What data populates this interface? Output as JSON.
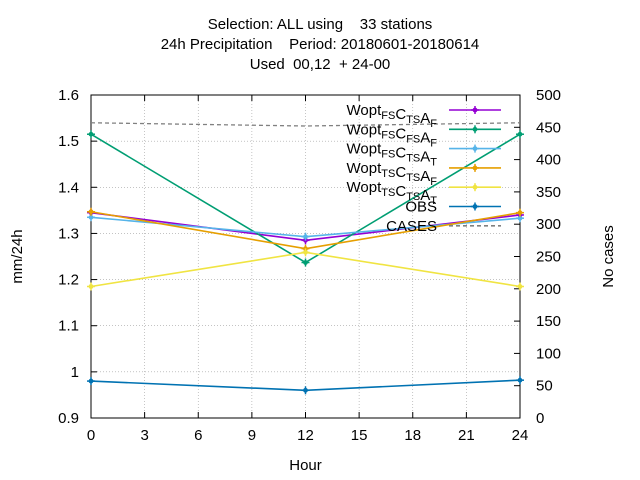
{
  "title_lines": [
    "Selection: ALL using    33 stations",
    "24h Precipitation    Period: 20180601-20180614",
    "Used  00,12  + 24-00"
  ],
  "chart_data": {
    "type": "line",
    "xlabel": "Hour",
    "ylabel": "mm/24h",
    "y2label": "No cases",
    "x": [
      0,
      12,
      24
    ],
    "xticks": [
      0,
      3,
      6,
      9,
      12,
      15,
      18,
      21,
      24
    ],
    "xlim": [
      0,
      24
    ],
    "yticks": [
      0.9,
      1,
      1.1,
      1.2,
      1.3,
      1.4,
      1.5,
      1.6
    ],
    "ylim": [
      0.9,
      1.6
    ],
    "y2ticks": [
      0,
      50,
      100,
      150,
      200,
      250,
      300,
      350,
      400,
      450,
      500
    ],
    "y2lim": [
      0,
      500
    ],
    "grid": true,
    "legend_position": "top-right",
    "series": [
      {
        "name": "Wopt FS C TS A F",
        "label_parts": [
          [
            "Wopt",
            ""
          ],
          [
            "FS",
            "sub"
          ],
          [
            "C",
            ""
          ],
          [
            "TS",
            "sub"
          ],
          [
            "A",
            ""
          ],
          [
            "F",
            "sub"
          ]
        ],
        "values": [
          1.345,
          1.285,
          1.34
        ],
        "color": "#9400d3",
        "marker": "plus",
        "dashed": false,
        "axis": "y1"
      },
      {
        "name": "Wopt FS C FS A F",
        "label_parts": [
          [
            "Wopt",
            ""
          ],
          [
            "FS",
            "sub"
          ],
          [
            "C",
            ""
          ],
          [
            "FS",
            "sub"
          ],
          [
            "A",
            ""
          ],
          [
            "F",
            "sub"
          ]
        ],
        "values": [
          1.515,
          1.237,
          1.515
        ],
        "color": "#009e73",
        "marker": "plus",
        "dashed": false,
        "axis": "y1"
      },
      {
        "name": "Wopt FS C TS A T",
        "label_parts": [
          [
            "Wopt",
            ""
          ],
          [
            "FS",
            "sub"
          ],
          [
            "C",
            ""
          ],
          [
            "TS",
            "sub"
          ],
          [
            "A",
            ""
          ],
          [
            "T",
            "sub"
          ]
        ],
        "values": [
          1.335,
          1.293,
          1.333
        ],
        "color": "#56b4e9",
        "marker": "plus",
        "dashed": false,
        "axis": "y1"
      },
      {
        "name": "Wopt TS C TS A F",
        "label_parts": [
          [
            "Wopt",
            ""
          ],
          [
            "TS",
            "sub"
          ],
          [
            "C",
            ""
          ],
          [
            "TS",
            "sub"
          ],
          [
            "A",
            ""
          ],
          [
            "F",
            "sub"
          ]
        ],
        "values": [
          1.347,
          1.267,
          1.345
        ],
        "color": "#e69f00",
        "marker": "plus",
        "dashed": false,
        "axis": "y1"
      },
      {
        "name": "Wopt TS C TS A T",
        "label_parts": [
          [
            "Wopt",
            ""
          ],
          [
            "TS",
            "sub"
          ],
          [
            "C",
            ""
          ],
          [
            "TS",
            "sub"
          ],
          [
            "A",
            ""
          ],
          [
            "T",
            "sub"
          ]
        ],
        "values": [
          1.185,
          1.259,
          1.185
        ],
        "color": "#f0e442",
        "marker": "plus",
        "dashed": false,
        "axis": "y1"
      },
      {
        "name": "OBS",
        "label_parts": [
          [
            "OBS",
            ""
          ]
        ],
        "values": [
          0.98,
          0.96,
          0.982
        ],
        "color": "#0072b2",
        "marker": "plus",
        "dashed": false,
        "axis": "y1"
      },
      {
        "name": "CASES",
        "label_parts": [
          [
            "CASES",
            ""
          ]
        ],
        "values": [
          457,
          452,
          457
        ],
        "color": "#808080",
        "marker": "none",
        "dashed": true,
        "axis": "y2"
      }
    ]
  }
}
